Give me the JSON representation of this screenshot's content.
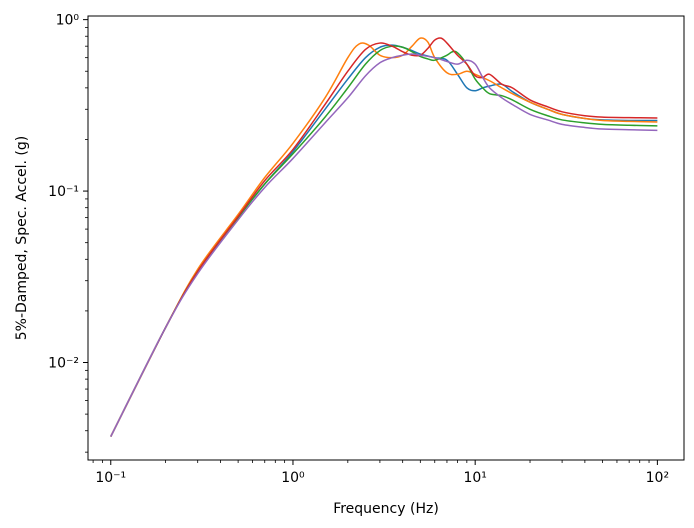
{
  "chart_data": {
    "type": "line",
    "title": "",
    "xlabel": "Frequency (Hz)",
    "ylabel": "5%-Damped, Spec. Accel. (g)",
    "xscale": "log",
    "yscale": "log",
    "xlim": [
      0.075,
      140
    ],
    "ylim": [
      0.0027,
      1.05
    ],
    "grid": false,
    "legend": "none",
    "x_ticks": [
      {
        "value": 0.1,
        "label": "10⁻¹"
      },
      {
        "value": 1,
        "label": "10⁰"
      },
      {
        "value": 10,
        "label": "10¹"
      },
      {
        "value": 100,
        "label": "10²"
      }
    ],
    "y_ticks": [
      {
        "value": 0.01,
        "label": "10⁻²"
      },
      {
        "value": 0.1,
        "label": "10⁻¹"
      },
      {
        "value": 1,
        "label": "10⁰"
      }
    ],
    "series": [
      {
        "color": "#1f77b4",
        "x": [
          0.1,
          0.2,
          0.3,
          0.5,
          0.7,
          1.0,
          1.5,
          2.0,
          2.5,
          3.0,
          3.5,
          4.0,
          4.5,
          5.0,
          6.0,
          7.0,
          8.0,
          9.0,
          10.0,
          11.0,
          12.0,
          14.0,
          16.0,
          20.0,
          25.0,
          30.0,
          40.0,
          50.0,
          70.0,
          100.0
        ],
        "y": [
          0.0037,
          0.016,
          0.034,
          0.07,
          0.11,
          0.17,
          0.3,
          0.45,
          0.6,
          0.69,
          0.71,
          0.69,
          0.66,
          0.63,
          0.6,
          0.58,
          0.48,
          0.4,
          0.385,
          0.4,
          0.41,
          0.42,
          0.38,
          0.33,
          0.3,
          0.28,
          0.265,
          0.26,
          0.258,
          0.258
        ]
      },
      {
        "color": "#ff7f0e",
        "x": [
          0.1,
          0.2,
          0.3,
          0.5,
          0.7,
          1.0,
          1.5,
          2.0,
          2.3,
          2.6,
          3.0,
          3.5,
          4.0,
          4.5,
          5.0,
          5.5,
          6.0,
          7.0,
          8.0,
          9.0,
          10.0,
          12.0,
          14.0,
          16.0,
          20.0,
          25.0,
          30.0,
          40.0,
          50.0,
          70.0,
          100.0
        ],
        "y": [
          0.0037,
          0.016,
          0.035,
          0.073,
          0.12,
          0.19,
          0.35,
          0.6,
          0.72,
          0.71,
          0.62,
          0.6,
          0.62,
          0.7,
          0.78,
          0.74,
          0.6,
          0.49,
          0.48,
          0.5,
          0.48,
          0.44,
          0.4,
          0.37,
          0.33,
          0.3,
          0.28,
          0.265,
          0.258,
          0.255,
          0.253
        ]
      },
      {
        "color": "#2ca02c",
        "x": [
          0.1,
          0.2,
          0.3,
          0.5,
          0.7,
          1.0,
          1.5,
          2.0,
          2.5,
          3.0,
          3.5,
          4.0,
          4.5,
          5.0,
          5.5,
          6.0,
          7.0,
          7.5,
          8.0,
          9.0,
          10.0,
          11.0,
          12.0,
          14.0,
          16.0,
          20.0,
          25.0,
          30.0,
          40.0,
          50.0,
          70.0,
          100.0
        ],
        "y": [
          0.0037,
          0.016,
          0.034,
          0.07,
          0.11,
          0.165,
          0.27,
          0.4,
          0.55,
          0.66,
          0.7,
          0.69,
          0.65,
          0.61,
          0.59,
          0.58,
          0.62,
          0.65,
          0.64,
          0.55,
          0.45,
          0.4,
          0.37,
          0.36,
          0.34,
          0.3,
          0.275,
          0.26,
          0.25,
          0.245,
          0.242,
          0.24
        ]
      },
      {
        "color": "#d62728",
        "x": [
          0.1,
          0.2,
          0.3,
          0.5,
          0.7,
          1.0,
          1.5,
          2.0,
          2.5,
          3.0,
          3.5,
          4.0,
          4.5,
          5.0,
          5.5,
          6.0,
          6.5,
          7.0,
          8.0,
          9.0,
          10.0,
          11.0,
          12.0,
          14.0,
          16.0,
          20.0,
          25.0,
          30.0,
          40.0,
          50.0,
          70.0,
          100.0
        ],
        "y": [
          0.0037,
          0.016,
          0.034,
          0.071,
          0.115,
          0.175,
          0.32,
          0.5,
          0.67,
          0.73,
          0.7,
          0.65,
          0.62,
          0.62,
          0.68,
          0.76,
          0.78,
          0.73,
          0.62,
          0.55,
          0.47,
          0.46,
          0.48,
          0.42,
          0.4,
          0.34,
          0.31,
          0.29,
          0.275,
          0.27,
          0.268,
          0.267
        ]
      },
      {
        "color": "#9467bd",
        "x": [
          0.1,
          0.2,
          0.3,
          0.5,
          0.7,
          1.0,
          1.5,
          2.0,
          2.5,
          3.0,
          3.5,
          4.0,
          4.5,
          5.0,
          6.0,
          7.0,
          8.0,
          9.0,
          10.0,
          11.0,
          12.0,
          14.0,
          16.0,
          20.0,
          25.0,
          30.0,
          40.0,
          50.0,
          70.0,
          100.0
        ],
        "y": [
          0.0037,
          0.016,
          0.033,
          0.068,
          0.105,
          0.155,
          0.25,
          0.35,
          0.47,
          0.56,
          0.6,
          0.62,
          0.63,
          0.62,
          0.6,
          0.57,
          0.55,
          0.58,
          0.55,
          0.46,
          0.4,
          0.35,
          0.32,
          0.28,
          0.26,
          0.245,
          0.235,
          0.23,
          0.228,
          0.226
        ]
      }
    ]
  }
}
